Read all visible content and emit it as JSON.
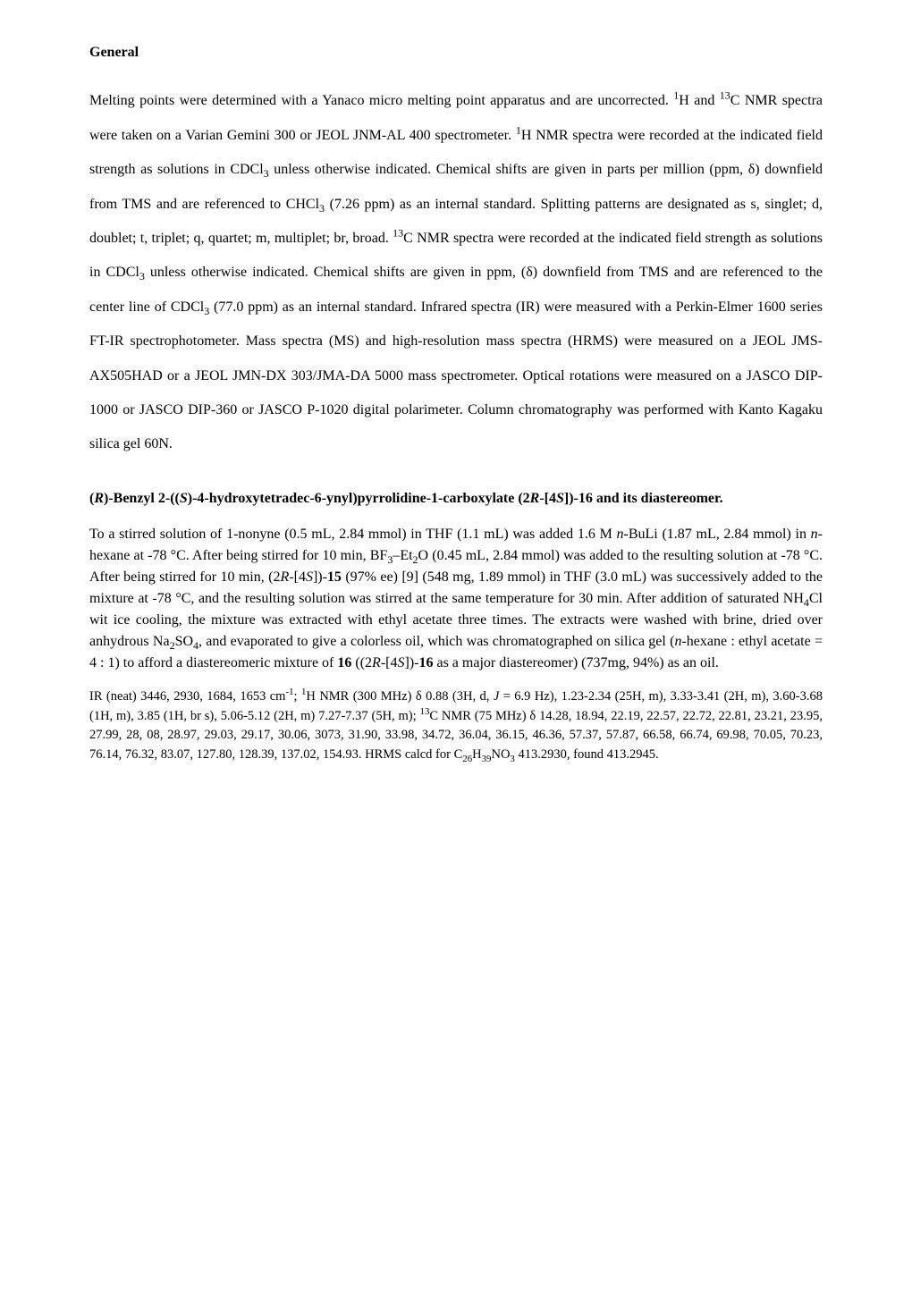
{
  "general": {
    "heading": "General",
    "paragraph_parts": [
      "Melting points were determined with a Yanaco micro melting point apparatus and are uncorrected. ",
      "H and ",
      "C NMR spectra were taken on a Varian Gemini 300 or JEOL JNM-AL 400 spectrometer. ",
      "H NMR spectra were recorded at the indicated field strength as solutions in CDCl",
      " unless otherwise indicated. Chemical shifts are given in parts per million (ppm, δ) downfield from TMS and are referenced to CHCl",
      " (7.26 ppm) as an internal standard. Splitting patterns are designated as s, singlet; d, doublet; t, triplet; q, quartet; m, multiplet; br, broad. ",
      "C NMR spectra were recorded at the indicated field strength as solutions in CDCl",
      " unless otherwise indicated. Chemical shifts are given in ppm, (δ) downfield from TMS and are referenced to the center line of CDCl",
      " (77.0 ppm) as an internal standard. Infrared spectra (IR) were measured with a Perkin-Elmer 1600 series FT-IR spectrophotometer. Mass spectra (MS) and high-resolution mass spectra (HRMS) were measured on a JEOL JMS-AX505HAD or a JEOL JMN-DX 303/JMA-DA 5000 mass spectrometer. Optical rotations were measured on a JASCO DIP-1000 or JASCO DIP-360 or JASCO P-1020 digital polarimeter. Column chromatography was performed with Kanto Kagaku silica gel 60N."
    ]
  },
  "section2": {
    "heading_parts": {
      "p1": "(",
      "p2": "R",
      "p3": ")-Benzyl 2-((",
      "p4": "S",
      "p5": ")-4-hydroxytetradec-6-ynyl)pyrrolidine-1-carboxylate   (2",
      "p6": "R",
      "p7": "-[4",
      "p8": "S",
      "p9": "])-16 and its diastereomer."
    },
    "body_parts": {
      "t1": "To a stirred solution of 1-nonyne (0.5 mL, 2.84 mmol) in THF (1.1 mL) was added 1.6 M ",
      "t2": "n",
      "t3": "-BuLi (1.87 mL, 2.84 mmol) in ",
      "t4": "n",
      "t5": "-hexane at -78 °C. After being stirred for 10 min, BF",
      "t6": "–Et",
      "t7": "O (0.45 mL, 2.84 mmol) was added to the resulting solution at -78 °C. After being stirred for 10 min, (2",
      "t8": "R",
      "t9": "-[4",
      "t10": "S",
      "t11": "])-",
      "t12": "15",
      "t13": " (97% ee) [9] (548 mg, 1.89 mmol) in THF (3.0 mL) was successively added to the mixture at -78 °C, and the resulting solution was stirred at the same temperature for 30 min. After addition of saturated NH",
      "t14": "Cl wit ice cooling, the mixture was extracted with ethyl acetate three times. The extracts were washed with brine, dried over anhydrous Na",
      "t15": "SO",
      "t16": ", and evaporated to give a colorless oil, which was chromatographed on silica gel (",
      "t17": "n",
      "t18": "-hexane : ethyl acetate = 4 : 1) to afford a diastereomeric mixture of ",
      "t19": "16",
      "t20": " ((2",
      "t21": "R",
      "t22": "-[4",
      "t23": "S",
      "t24": "])-",
      "t25": "16",
      "t26": " as a major diastereomer) (737mg, 94%) as an oil."
    },
    "spectral_parts": {
      "s1": "IR (neat) 3446, 2930, 1684, 1653 cm",
      "s2": "; ",
      "s3": "H NMR (300 MHz) δ 0.88 (3H, d, ",
      "s4": "J",
      "s5": " = 6.9 Hz), 1.23-2.34 (25H, m), 3.33-3.41 (2H, m), 3.60-3.68 (1H, m), 3.85 (1H, br s), 5.06-5.12 (2H, m) 7.27-7.37 (5H, m); ",
      "s6": "C NMR (75 MHz) δ 14.28, 18.94, 22.19, 22.57, 22.72, 22.81, 23.21, 23.95, 27.99, 28, 08, 28.97, 29.03, 29.17, 30.06, 3073, 31.90, 33.98, 34.72, 36.04, 36.15, 46.36, 57.37, 57.87, 66.58, 66.74, 69.98, 70.05, 70.23, 76.14, 76.32, 83.07, 127.80, 128.39, 137.02, 154.93. ",
      "s7": "HRMS calcd for C",
      "s8": "H",
      "s9": "NO",
      "s10": " 413.2930, found 413.2945."
    }
  }
}
